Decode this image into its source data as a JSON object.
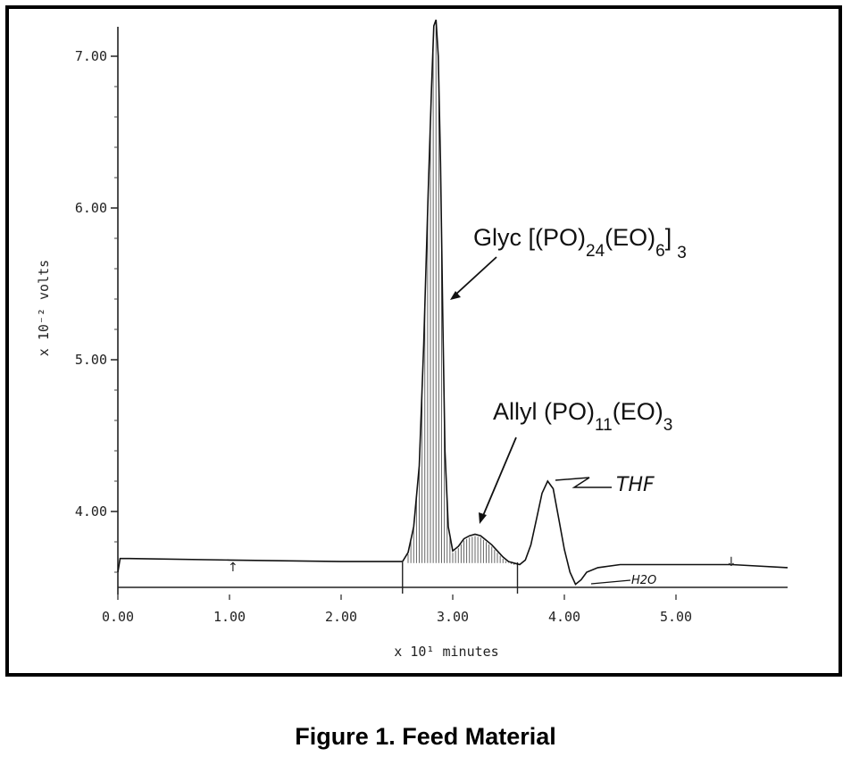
{
  "chart_data": {
    "type": "line",
    "xlabel": "x 10¹ minutes",
    "ylabel": "x 10⁻² volts",
    "xlim": [
      0,
      6
    ],
    "ylim": [
      3.5,
      7.3
    ],
    "x_ticks": [
      "0.00",
      "1.00",
      "2.00",
      "3.00",
      "4.00",
      "5.00"
    ],
    "y_ticks": [
      "4.00",
      "5.00",
      "6.00",
      "7.00"
    ],
    "grid": false,
    "series": [
      {
        "x": [
          0.0,
          0.02,
          0.1,
          1.0,
          2.0,
          2.55,
          2.6,
          2.65,
          2.7,
          2.74,
          2.78,
          2.81,
          2.83,
          2.85,
          2.87,
          2.89,
          2.91,
          2.93,
          2.96,
          3.0,
          3.05,
          3.1,
          3.15,
          3.2,
          3.25,
          3.3,
          3.35,
          3.4,
          3.45,
          3.5,
          3.55,
          3.6,
          3.65,
          3.7,
          3.75,
          3.8,
          3.85,
          3.9,
          3.95,
          4.0,
          4.05,
          4.1,
          4.15,
          4.2,
          4.3,
          4.5,
          5.0,
          5.5,
          6.0
        ],
        "y": [
          3.6,
          3.69,
          3.69,
          3.68,
          3.67,
          3.67,
          3.73,
          3.9,
          4.3,
          5.1,
          6.1,
          6.8,
          7.2,
          7.24,
          7.0,
          6.3,
          5.3,
          4.4,
          3.9,
          3.74,
          3.77,
          3.82,
          3.84,
          3.85,
          3.84,
          3.81,
          3.78,
          3.74,
          3.7,
          3.67,
          3.66,
          3.65,
          3.68,
          3.78,
          3.95,
          4.12,
          4.2,
          4.15,
          3.95,
          3.75,
          3.6,
          3.52,
          3.55,
          3.6,
          3.63,
          3.65,
          3.65,
          3.65,
          3.63
        ]
      }
    ],
    "annotations": {
      "glyc_label": "Glyc [(PO)",
      "glyc_sub1": "24",
      "glyc_mid": "(EO)",
      "glyc_sub2": "6",
      "glyc_end": "]",
      "glyc_sub3": "3",
      "allyl_label": "Allyl (PO)",
      "allyl_sub1": "11",
      "allyl_mid": "(EO)",
      "allyl_sub2": "3",
      "thf": "THF",
      "h2o": "H2O"
    }
  },
  "caption": "Figure 1.  Feed Material"
}
